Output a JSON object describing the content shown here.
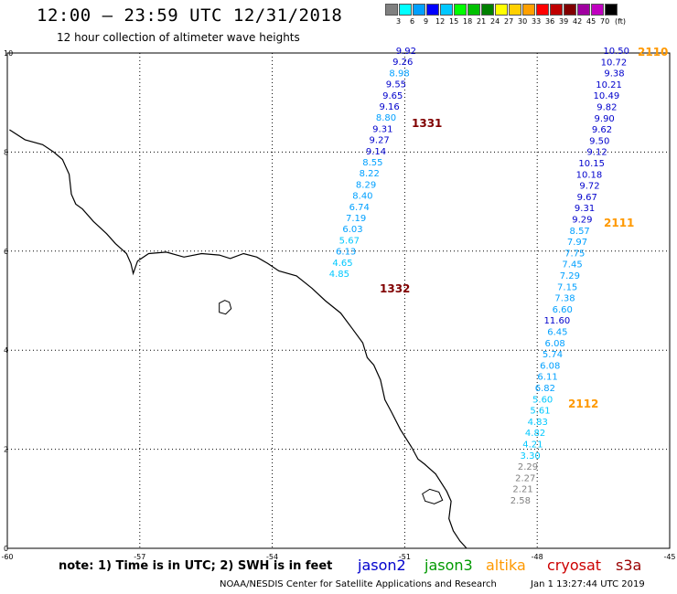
{
  "header": {
    "title": "12:00 – 23:59 UTC 12/31/2018",
    "subtitle": "12 hour collection of altimeter wave heights"
  },
  "legend": {
    "unit": "(ft)",
    "levels": [
      "3",
      "6",
      "9",
      "12",
      "15",
      "18",
      "21",
      "24",
      "27",
      "30",
      "33",
      "36",
      "39",
      "42",
      "45",
      "70"
    ],
    "colors": [
      "#808080",
      "#00ffff",
      "#00a0ff",
      "#0000ff",
      "#00c8ff",
      "#00ff00",
      "#00c000",
      "#008000",
      "#ffff00",
      "#ffd000",
      "#ffa000",
      "#ff0000",
      "#c00000",
      "#800000",
      "#a000a0",
      "#c000c0",
      "#000000"
    ]
  },
  "map": {
    "lon_range": [
      -60,
      -45
    ],
    "lat_range": [
      0,
      10
    ],
    "lon_ticks": [
      "-60",
      "-57",
      "-54",
      "-51",
      "-48",
      "-45"
    ],
    "lat_ticks": [
      "0",
      "2",
      "4",
      "6",
      "8",
      "10"
    ],
    "coastline_color": "#000000"
  },
  "tracks": [
    {
      "labels": [
        {
          "text": "1331",
          "color": "#800000"
        },
        {
          "text": "1332",
          "color": "#800000"
        }
      ],
      "points": [
        {
          "v": "9.92",
          "color": "#0000cc"
        },
        {
          "v": "9.26",
          "color": "#0000cc"
        },
        {
          "v": "8.98",
          "color": "#00a0ff"
        },
        {
          "v": "9.55",
          "color": "#0000cc"
        },
        {
          "v": "9.65",
          "color": "#0000cc"
        },
        {
          "v": "9.16",
          "color": "#0000cc"
        },
        {
          "v": "8.80",
          "color": "#00a0ff"
        },
        {
          "v": "9.31",
          "color": "#0000cc"
        },
        {
          "v": "9.27",
          "color": "#0000cc"
        },
        {
          "v": "9.14",
          "color": "#0000cc"
        },
        {
          "v": "8.55",
          "color": "#00a0ff"
        },
        {
          "v": "8.22",
          "color": "#00a0ff"
        },
        {
          "v": "8.29",
          "color": "#00a0ff"
        },
        {
          "v": "8.40",
          "color": "#00a0ff"
        },
        {
          "v": "6.74",
          "color": "#00a0ff"
        },
        {
          "v": "7.19",
          "color": "#00a0ff"
        },
        {
          "v": "6.03",
          "color": "#00a0ff"
        },
        {
          "v": "5.67",
          "color": "#00c8ff"
        },
        {
          "v": "6.13",
          "color": "#00a0ff"
        },
        {
          "v": "4.65",
          "color": "#00c8ff"
        },
        {
          "v": "4.85",
          "color": "#00c8ff"
        }
      ]
    },
    {
      "labels": [
        {
          "text": "2110",
          "color": "#ff9900"
        },
        {
          "text": "2111",
          "color": "#ff9900"
        },
        {
          "text": "2112",
          "color": "#ff9900"
        }
      ],
      "points": [
        {
          "v": "10.50",
          "color": "#0000cc"
        },
        {
          "v": "10.72",
          "color": "#0000cc"
        },
        {
          "v": "9.38",
          "color": "#0000cc"
        },
        {
          "v": "10.21",
          "color": "#0000cc"
        },
        {
          "v": "10.49",
          "color": "#0000cc"
        },
        {
          "v": "9.82",
          "color": "#0000cc"
        },
        {
          "v": "9.90",
          "color": "#0000cc"
        },
        {
          "v": "9.62",
          "color": "#0000cc"
        },
        {
          "v": "9.50",
          "color": "#0000cc"
        },
        {
          "v": "9.12",
          "color": "#0000cc"
        },
        {
          "v": "10.15",
          "color": "#0000cc"
        },
        {
          "v": "10.18",
          "color": "#0000cc"
        },
        {
          "v": "9.72",
          "color": "#0000cc"
        },
        {
          "v": "9.67",
          "color": "#0000cc"
        },
        {
          "v": "9.31",
          "color": "#0000cc"
        },
        {
          "v": "9.29",
          "color": "#0000cc"
        },
        {
          "v": "8.57",
          "color": "#00a0ff"
        },
        {
          "v": "7.97",
          "color": "#00a0ff"
        },
        {
          "v": "7.75",
          "color": "#00a0ff"
        },
        {
          "v": "7.45",
          "color": "#00a0ff"
        },
        {
          "v": "7.29",
          "color": "#00a0ff"
        },
        {
          "v": "7.15",
          "color": "#00a0ff"
        },
        {
          "v": "7.38",
          "color": "#00a0ff"
        },
        {
          "v": "6.60",
          "color": "#00a0ff"
        },
        {
          "v": "11.60",
          "color": "#0000cc"
        },
        {
          "v": "6.45",
          "color": "#00a0ff"
        },
        {
          "v": "6.08",
          "color": "#00a0ff"
        },
        {
          "v": "5.74",
          "color": "#00a0ff"
        },
        {
          "v": "6.08",
          "color": "#00a0ff"
        },
        {
          "v": "6.11",
          "color": "#00a0ff"
        },
        {
          "v": "6.82",
          "color": "#00a0ff"
        },
        {
          "v": "5.60",
          "color": "#00c8ff"
        },
        {
          "v": "5.61",
          "color": "#00c8ff"
        },
        {
          "v": "4.83",
          "color": "#00c8ff"
        },
        {
          "v": "4.82",
          "color": "#00c8ff"
        },
        {
          "v": "4.21",
          "color": "#00c8ff"
        },
        {
          "v": "3.30",
          "color": "#00c8ff"
        },
        {
          "v": "2.29",
          "color": "#808080"
        },
        {
          "v": "2.27",
          "color": "#808080"
        },
        {
          "v": "2.21",
          "color": "#808080"
        },
        {
          "v": "2.58",
          "color": "#808080"
        }
      ]
    }
  ],
  "footer": {
    "note": "note:  1) Time is in UTC; 2) SWH is in feet",
    "satellites": [
      {
        "name": "jason2",
        "color": "#0000cc"
      },
      {
        "name": "jason3",
        "color": "#009900"
      },
      {
        "name": "altika",
        "color": "#ff9900"
      },
      {
        "name": "cryosat",
        "color": "#cc0000"
      },
      {
        "name": "s3a",
        "color": "#990000"
      }
    ],
    "credit": "NOAA/NESDIS Center for Satellite Applications and Research",
    "timestamp": "Jan  1 13:27:44 UTC 2019"
  }
}
